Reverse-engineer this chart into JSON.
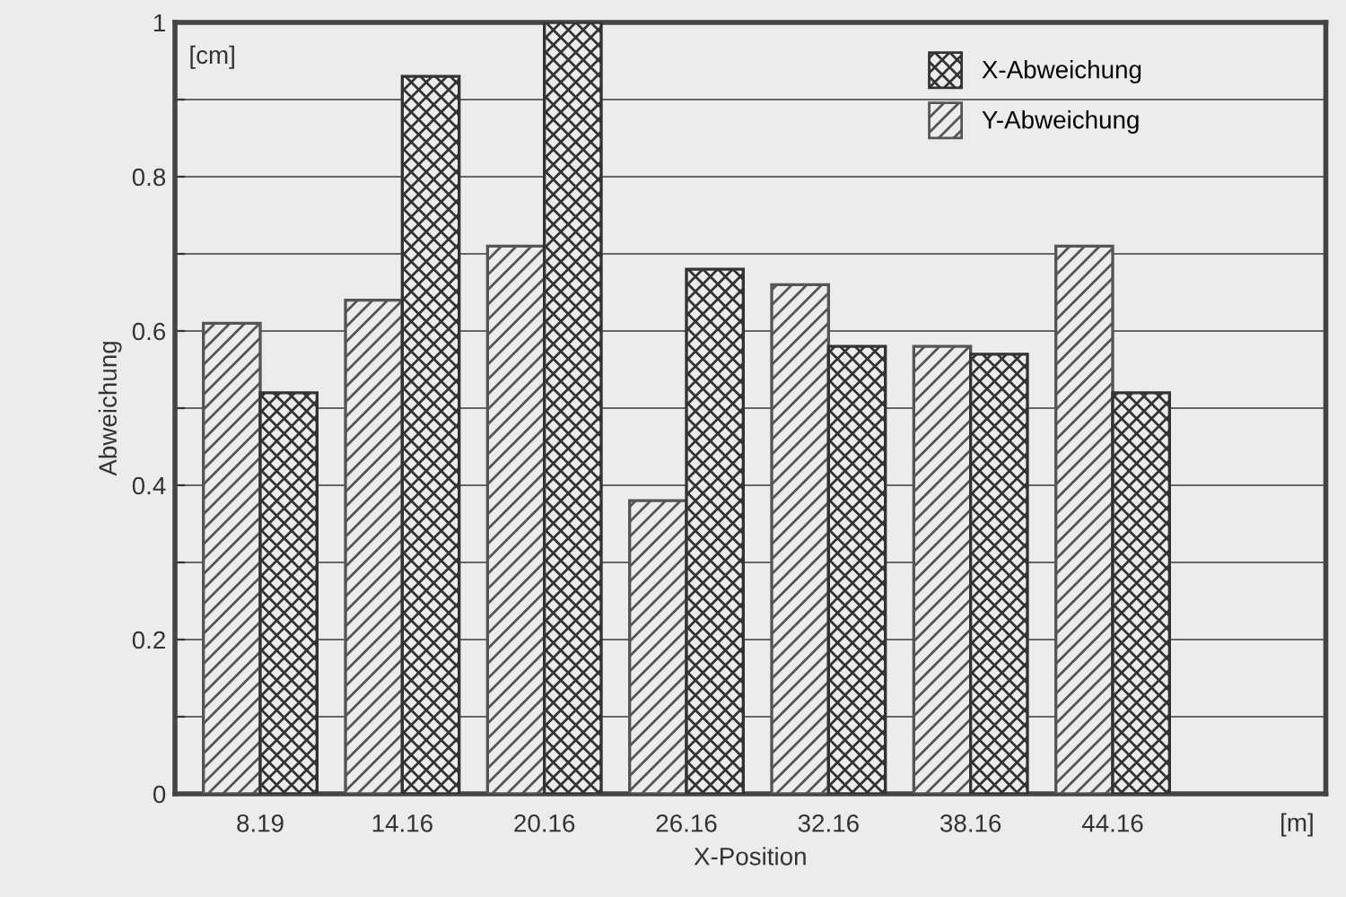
{
  "chart_data": {
    "type": "bar",
    "xlabel": "X-Position",
    "ylabel": "Abweichung",
    "annotations": [
      "[cm]",
      "[m]"
    ],
    "categories": [
      "8.19",
      "14.16",
      "20.16",
      "26.16",
      "32.16",
      "38.16",
      "44.16"
    ],
    "series": [
      {
        "name": "Y-Abweichung",
        "color": "#555555",
        "values": [
          0.61,
          0.64,
          0.71,
          0.38,
          0.66,
          0.58,
          0.71
        ]
      },
      {
        "name": "X-Abweichung",
        "color": "#333333",
        "values": [
          0.52,
          0.93,
          1.0,
          0.68,
          0.58,
          0.57,
          0.52
        ]
      }
    ],
    "ylim": [
      0,
      1
    ],
    "yticks": [
      0,
      {
        "value": 0.1,
        "label": null
      },
      0.2,
      {
        "value": 0.3,
        "label": null
      },
      0.4,
      {
        "value": 0.5,
        "label": null
      },
      0.6,
      {
        "value": 0.7,
        "label": null
      },
      0.8,
      {
        "value": 0.9,
        "label": null
      },
      1
    ],
    "grid": "y",
    "legend": "top right"
  }
}
